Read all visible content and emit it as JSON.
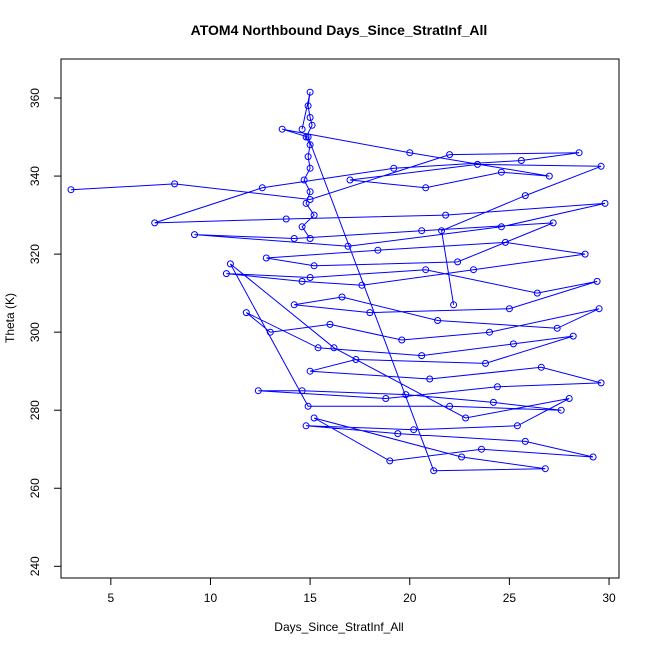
{
  "chart_data": {
    "type": "scatter",
    "title": "ATOM4 Northbound Days_Since_StratInf_All",
    "xlabel": "Days_Since_StratInf_All",
    "ylabel": "Theta (K)",
    "xlim": [
      2.5,
      30.5
    ],
    "ylim": [
      237,
      370
    ],
    "x_ticks": [
      5,
      10,
      15,
      20,
      25,
      30
    ],
    "y_ticks": [
      240,
      260,
      280,
      300,
      320,
      340,
      360
    ],
    "grid": false,
    "series": [
      {
        "color": "#0000ff",
        "marker": "open-circle",
        "connected": true,
        "x": [
          3.0,
          8.2,
          15.0,
          22.0,
          28.5,
          25.6,
          19.2,
          12.6,
          7.2,
          13.8,
          21.8,
          29.8,
          24.6,
          16.9,
          9.2,
          14.2,
          20.6,
          27.2,
          22.4,
          15.2,
          12.8,
          18.4,
          24.8,
          28.8,
          23.2,
          17.6,
          14.6,
          10.8,
          15.0,
          20.8,
          26.4,
          29.4,
          25.0,
          18.0,
          14.2,
          16.6,
          21.4,
          27.4,
          29.5,
          24.0,
          19.6,
          16.0,
          13.0,
          11.8,
          15.4,
          20.6,
          25.2,
          28.2,
          23.8,
          17.3,
          15.0,
          21.0,
          26.6,
          29.6,
          24.4,
          18.8,
          12.4,
          14.6,
          19.8,
          24.2,
          27.6,
          22.0,
          14.9,
          11.0,
          16.2,
          22.8,
          28.0,
          25.4,
          20.2,
          14.8,
          19.4,
          25.8,
          29.2,
          23.6,
          19.0,
          15.2,
          22.6,
          26.8,
          21.2,
          14.9,
          13.6,
          20.0,
          27.0,
          24.6,
          20.8,
          17.0,
          23.4,
          29.6,
          25.8,
          21.6,
          22.2
        ],
        "y": [
          336.5,
          338.0,
          334.0,
          345.5,
          346.0,
          344.0,
          342.0,
          337.0,
          328.0,
          329.0,
          330.0,
          333.0,
          327.0,
          322.0,
          325.0,
          324.0,
          326.0,
          328.0,
          318.0,
          317.0,
          319.0,
          321.0,
          323.0,
          320.0,
          316.0,
          312.0,
          313.0,
          315.0,
          314.0,
          316.0,
          310.0,
          313.0,
          306.0,
          305.0,
          307.0,
          309.0,
          303.0,
          301.0,
          306.0,
          300.0,
          298.0,
          302.0,
          300.0,
          305.0,
          296.0,
          294.0,
          297.0,
          299.0,
          292.0,
          293.0,
          290.0,
          288.0,
          291.0,
          287.0,
          286.0,
          283.0,
          285.0,
          285.0,
          284.0,
          282.0,
          280.0,
          281.0,
          281.0,
          317.5,
          296.0,
          278.0,
          283.0,
          276.0,
          275.0,
          276.0,
          274.0,
          272.0,
          268.0,
          270.0,
          267.0,
          278.0,
          268.0,
          265.0,
          264.5,
          350.0,
          352.0,
          346.0,
          340.0,
          341.0,
          337.0,
          339.0,
          343.0,
          342.5,
          335.0,
          326.0,
          307.0
        ]
      },
      {
        "color": "#0000ff",
        "marker": "open-circle",
        "connected": true,
        "x": [
          14.6,
          15.0,
          14.9,
          15.0,
          15.1,
          14.8,
          15.0,
          14.9,
          15.0,
          14.7,
          15.0,
          14.8,
          15.2,
          14.6,
          15.0
        ],
        "y": [
          352.0,
          361.5,
          358.0,
          355.0,
          353.0,
          350.0,
          348.0,
          345.0,
          342.0,
          339.0,
          336.0,
          333.0,
          330.0,
          327.0,
          324.0
        ]
      }
    ]
  }
}
